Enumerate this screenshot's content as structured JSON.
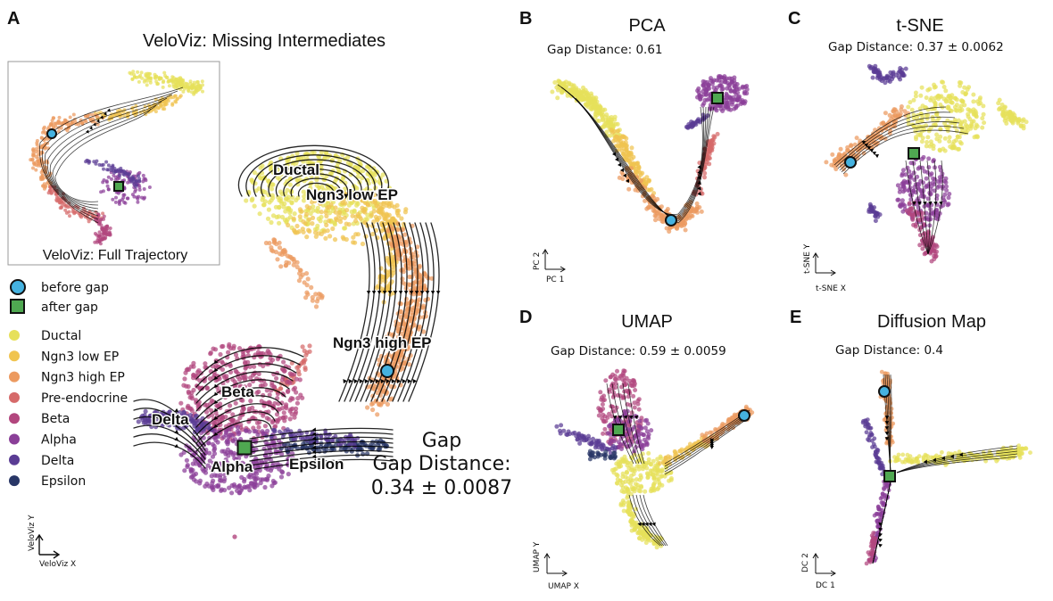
{
  "colors": {
    "Ductal": "#e6e05a",
    "Ngn3 low EP": "#f0c450",
    "Ngn3 high EP": "#ec9a60",
    "Pre-endocrine": "#d66a6a",
    "Beta": "#b2467e",
    "Alpha": "#8a3f98",
    "Delta": "#5a3c94",
    "Epsilon": "#283666",
    "before_gap": "#45b2e0",
    "after_gap": "#4fa851"
  },
  "chart_data": [
    {
      "panel": "A",
      "type": "scatter",
      "title": "VeloViz: Missing Intermediates",
      "inset_title": "VeloViz: Full Trajectory",
      "gap_label": "Gap Distance:",
      "gap_value": "0.34 ± 0.0087",
      "xlabel": "VeloViz X",
      "ylabel": "VeloViz Y",
      "cluster_labels": [
        "Ductal",
        "Ngn3 low EP",
        "Ngn3 high EP",
        "Beta",
        "Delta",
        "Alpha",
        "Epsilon"
      ],
      "legend": {
        "markers": [
          {
            "label": "before gap",
            "shape": "circle",
            "color": "#45b2e0"
          },
          {
            "label": "after gap",
            "shape": "square",
            "color": "#4fa851"
          }
        ],
        "clusters": [
          "Ductal",
          "Ngn3 low EP",
          "Ngn3 high EP",
          "Pre-endocrine",
          "Beta",
          "Alpha",
          "Delta",
          "Epsilon"
        ]
      }
    },
    {
      "panel": "B",
      "type": "scatter",
      "title": "PCA",
      "gap_text": "Gap Distance: 0.61",
      "xlabel": "PC 1",
      "ylabel": "PC 2"
    },
    {
      "panel": "C",
      "type": "scatter",
      "title": "t-SNE",
      "gap_text": "Gap Distance: 0.37 ± 0.0062",
      "xlabel": "t-SNE X",
      "ylabel": "t-SNE Y"
    },
    {
      "panel": "D",
      "type": "scatter",
      "title": "UMAP",
      "gap_text": "Gap Distance: 0.59 ± 0.0059",
      "xlabel": "UMAP X",
      "ylabel": "UMAP Y"
    },
    {
      "panel": "E",
      "type": "scatter",
      "title": "Diffusion Map",
      "gap_text": "Gap Distance: 0.4",
      "xlabel": "DC 1",
      "ylabel": "DC 2"
    }
  ]
}
